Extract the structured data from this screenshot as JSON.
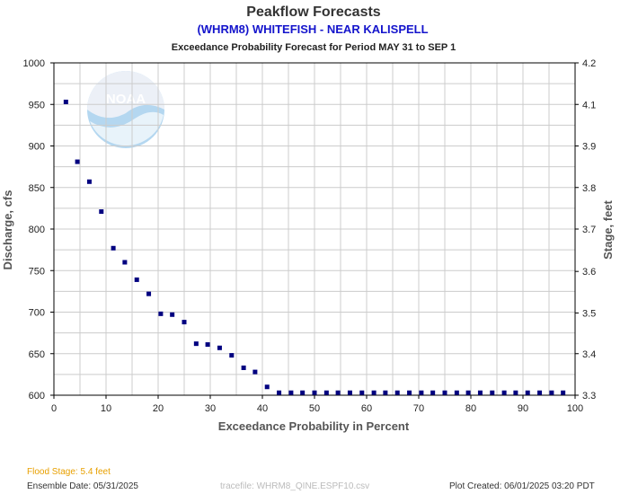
{
  "header": {
    "title": "Peakflow Forecasts",
    "station": "(WHRM8) WHITEFISH - NEAR KALISPELL",
    "subtitle": "Exceedance Probability Forecast for Period MAY 31 to SEP 1"
  },
  "footer": {
    "flood_stage": "Flood Stage: 5.4 feet",
    "ensemble_date": "Ensemble Date: 05/31/2025",
    "tracefile": "tracefile: WHRM8_QINE.ESPF10.csv",
    "plot_created": "Plot Created: 06/01/2025 03:20 PDT"
  },
  "watermark": {
    "logo_text": "NOAA"
  },
  "colors": {
    "marker": "#000080",
    "grid": "#cccccc",
    "title_blue": "#1414cc",
    "flood_orange": "#e8a000"
  },
  "chart_data": {
    "type": "scatter",
    "xlabel": "Exceedance Probability in Percent",
    "ylabel": "Discharge, cfs",
    "y2label": "Stage, feet",
    "xlim": [
      0,
      100
    ],
    "ylim": [
      600,
      1000
    ],
    "xticks": [
      "0",
      "10",
      "20",
      "30",
      "40",
      "50",
      "60",
      "70",
      "80",
      "90",
      "100"
    ],
    "yticks": [
      "600",
      "650",
      "700",
      "750",
      "800",
      "850",
      "900",
      "950",
      "1000"
    ],
    "y2ticks": [
      {
        "label": "3.3",
        "at_discharge": 600
      },
      {
        "label": "3.4",
        "at_discharge": 650
      },
      {
        "label": "3.5",
        "at_discharge": 699
      },
      {
        "label": "3.6",
        "at_discharge": 749
      },
      {
        "label": "3.7",
        "at_discharge": 800
      },
      {
        "label": "3.8",
        "at_discharge": 850
      },
      {
        "label": "3.9",
        "at_discharge": 900
      },
      {
        "label": "4.1",
        "at_discharge": 950
      },
      {
        "label": "4.2",
        "at_discharge": 1000
      }
    ],
    "grid": true,
    "points": [
      {
        "x": 2.3,
        "y": 953
      },
      {
        "x": 4.5,
        "y": 881
      },
      {
        "x": 6.8,
        "y": 857
      },
      {
        "x": 9.1,
        "y": 821
      },
      {
        "x": 11.4,
        "y": 777
      },
      {
        "x": 13.6,
        "y": 760
      },
      {
        "x": 15.9,
        "y": 739
      },
      {
        "x": 18.2,
        "y": 722
      },
      {
        "x": 20.5,
        "y": 698
      },
      {
        "x": 22.7,
        "y": 697
      },
      {
        "x": 25.0,
        "y": 688
      },
      {
        "x": 27.3,
        "y": 662
      },
      {
        "x": 29.5,
        "y": 661
      },
      {
        "x": 31.8,
        "y": 657
      },
      {
        "x": 34.1,
        "y": 648
      },
      {
        "x": 36.4,
        "y": 633
      },
      {
        "x": 38.6,
        "y": 628
      },
      {
        "x": 40.9,
        "y": 610
      },
      {
        "x": 43.2,
        "y": 603
      },
      {
        "x": 45.5,
        "y": 603
      },
      {
        "x": 47.7,
        "y": 603
      },
      {
        "x": 50.0,
        "y": 603
      },
      {
        "x": 52.3,
        "y": 603
      },
      {
        "x": 54.5,
        "y": 603
      },
      {
        "x": 56.8,
        "y": 603
      },
      {
        "x": 59.1,
        "y": 603
      },
      {
        "x": 61.4,
        "y": 603
      },
      {
        "x": 63.6,
        "y": 603
      },
      {
        "x": 65.9,
        "y": 603
      },
      {
        "x": 68.2,
        "y": 603
      },
      {
        "x": 70.5,
        "y": 603
      },
      {
        "x": 72.7,
        "y": 603
      },
      {
        "x": 75.0,
        "y": 603
      },
      {
        "x": 77.3,
        "y": 603
      },
      {
        "x": 79.5,
        "y": 603
      },
      {
        "x": 81.8,
        "y": 603
      },
      {
        "x": 84.1,
        "y": 603
      },
      {
        "x": 86.4,
        "y": 603
      },
      {
        "x": 88.6,
        "y": 603
      },
      {
        "x": 90.9,
        "y": 603
      },
      {
        "x": 93.2,
        "y": 603
      },
      {
        "x": 95.5,
        "y": 603
      },
      {
        "x": 97.7,
        "y": 603
      }
    ]
  }
}
